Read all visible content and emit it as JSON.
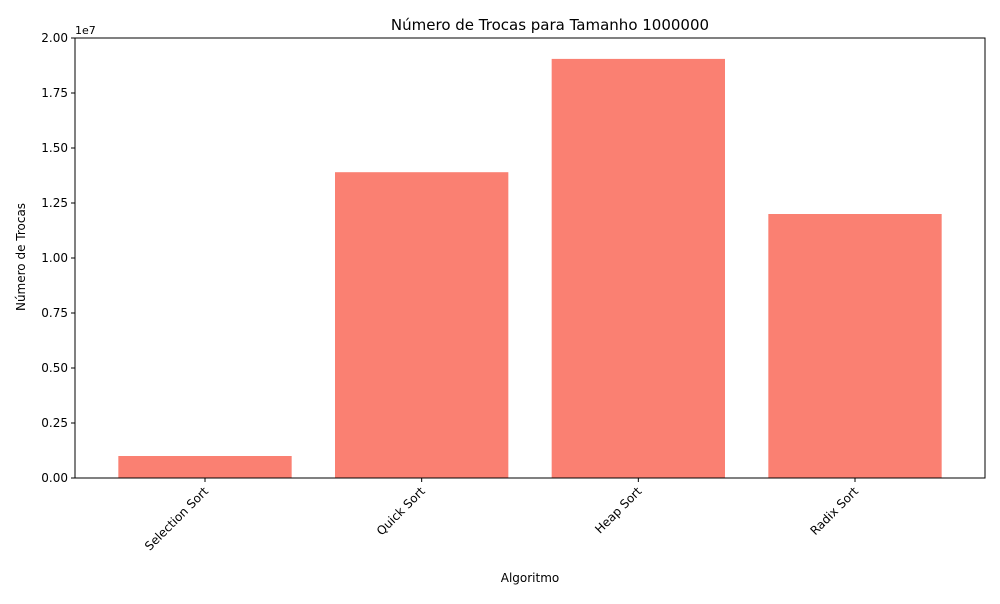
{
  "chart_data": {
    "type": "bar",
    "title": "Número de Trocas para Tamanho 1000000",
    "xlabel": "Algoritmo",
    "ylabel": "Número de Trocas",
    "y_offset_label": "1e7",
    "categories": [
      "Selection Sort",
      "Quick Sort",
      "Heap Sort",
      "Radix Sort"
    ],
    "values": [
      1000000,
      13900000,
      19050000,
      12000000
    ],
    "ylim": [
      0,
      20000000
    ],
    "yticks": [
      0,
      2500000,
      5000000,
      7500000,
      10000000,
      12500000,
      15000000,
      17500000,
      20000000
    ],
    "ytick_labels": [
      "0.00",
      "0.25",
      "0.50",
      "0.75",
      "1.00",
      "1.25",
      "1.50",
      "1.75",
      "2.00"
    ],
    "xtick_rotation_deg": 45,
    "bar_color": "#fa8072",
    "grid": false,
    "legend": "none"
  }
}
